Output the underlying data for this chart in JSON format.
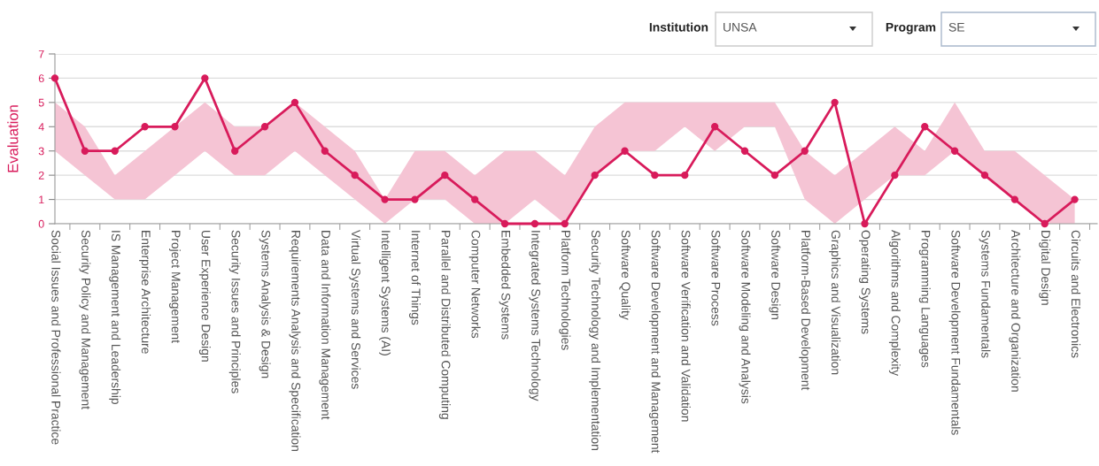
{
  "chart_data": {
    "type": "line",
    "ylabel": "Evaluation",
    "categories": [
      "Social Issues and Professional Practice",
      "Security Policy and Management",
      "IS Management and Leadership",
      "Enterprise Architecture",
      "Project Management",
      "User Experience Design",
      "Security Issues and Principles",
      "Systems Analysis & Design",
      "Requirements Analysis and Specification",
      "Data and Information Management",
      "Virtual Systems and Services",
      "Intelligent Systems (AI)",
      "Internet of Things",
      "Parallel and Distributed Computing",
      "Computer Networks",
      "Embedded Systems",
      "Integrated Systems Technology",
      "Platform Technologies",
      "Security Technology and Implementation",
      "Software Quality",
      "Software Development and Management",
      "Software Verification and Validation",
      "Software Process",
      "Software Modeling and Analysis",
      "Software Design",
      "Platform-Based Development",
      "Graphics and Visualization",
      "Operating Systems",
      "Algorithms and Complexity",
      "Programming Languages",
      "Software Development Fundamentals",
      "Systems Fundamentals",
      "Architecture and Organization",
      "Digital Design",
      "Circuits and Electronics"
    ],
    "series": [
      {
        "color": "#d81b5b",
        "values": [
          6,
          3,
          3,
          4,
          4,
          6,
          3,
          4,
          5,
          3,
          2,
          1,
          1,
          2,
          1,
          0,
          0,
          0,
          2,
          3,
          2,
          2,
          4,
          3,
          2,
          3,
          5,
          0,
          2,
          4,
          3,
          2,
          1,
          0,
          1
        ],
        "lower": [
          3,
          2,
          1,
          1,
          2,
          3,
          2,
          2,
          3,
          2,
          1,
          0,
          1,
          1,
          0,
          0,
          1,
          0,
          2,
          3,
          3,
          4,
          3,
          4,
          4,
          1,
          0,
          1,
          2,
          2,
          3,
          2,
          1,
          0,
          0
        ],
        "upper": [
          5,
          4,
          2,
          3,
          4,
          5,
          4,
          4,
          5,
          4,
          3,
          1,
          3,
          3,
          2,
          3,
          3,
          2,
          4,
          5,
          5,
          5,
          5,
          5,
          5,
          3,
          2,
          3,
          4,
          3,
          5,
          3,
          3,
          2,
          1
        ]
      }
    ],
    "ylim": [
      0,
      7
    ],
    "yticks": [
      0,
      1,
      2,
      3,
      4,
      5,
      6,
      7
    ],
    "grid": "y",
    "marker": "circle",
    "line_style": "solid",
    "annotations": [
      "Institution",
      "UNSA",
      "Program",
      "SE"
    ]
  }
}
